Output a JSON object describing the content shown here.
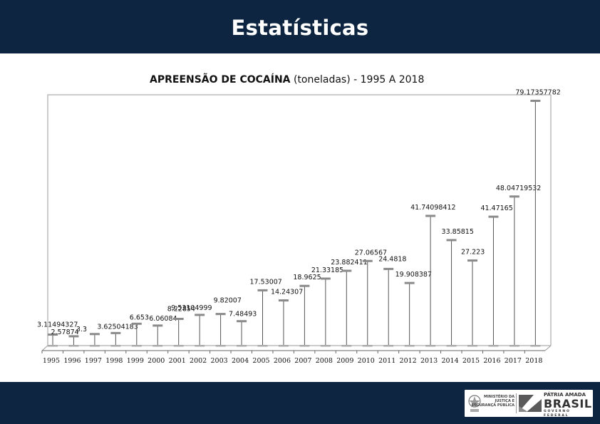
{
  "header": {
    "title": "Estatísticas"
  },
  "chart_title": {
    "bold": "APREENSÃO DE COCAÍNA",
    "rest": " (toneladas)  - 1995 A 2018"
  },
  "chart_data": {
    "type": "bar",
    "title": "APREENSÃO DE COCAÍNA (toneladas)  - 1995 A 2018",
    "xlabel": "",
    "ylabel": "",
    "ylim": [
      0,
      80
    ],
    "grid": false,
    "categories": [
      "1995",
      "1996",
      "1997",
      "1998",
      "1999",
      "2000",
      "2001",
      "2002",
      "2003",
      "2004",
      "2005",
      "2006",
      "2007",
      "2008",
      "2009",
      "2010",
      "2011",
      "2012",
      "2013",
      "2014",
      "2015",
      "2016",
      "2017",
      "2018"
    ],
    "values": [
      3.11494327,
      2.57874,
      3.3,
      3.62504183,
      6.653,
      6.06084,
      8.22854,
      9.53104999,
      9.82007,
      7.48493,
      17.53007,
      14.24307,
      18.9625,
      21.33185,
      23.882411,
      27.06567,
      24.4818,
      19.908387,
      41.74098412,
      33.85815,
      27.223,
      41.47165,
      48.04719532,
      79.17357782
    ],
    "data_labels": [
      "3.11494327",
      "2.57874",
      "3.3",
      "3.62504183",
      "6.653",
      "6.06084",
      "8.22854",
      "9.53104999",
      "9.82007",
      "7.48493",
      "17.53007",
      "14.24307",
      "18.9625",
      "21.33185",
      "23.882411",
      "27.06567",
      "24.4818",
      "19.908387",
      "41.74098412",
      "33.85815",
      "27.223",
      "41.47165",
      "48.04719532",
      "79.17357782"
    ],
    "colors": {
      "stem": "#555555",
      "cap": "#8a8a8a",
      "frame": "#9a9a9a",
      "text": "#111111"
    }
  },
  "footer": {
    "ministry": [
      "MINISTÉRIO DA",
      "JUSTIÇA E",
      "SEGURANÇA PÚBLICA"
    ],
    "brand_line1": "PÁTRIA AMADA",
    "brand_line2": "BRASIL",
    "brand_line3": "GOVERNO FEDERAL"
  }
}
